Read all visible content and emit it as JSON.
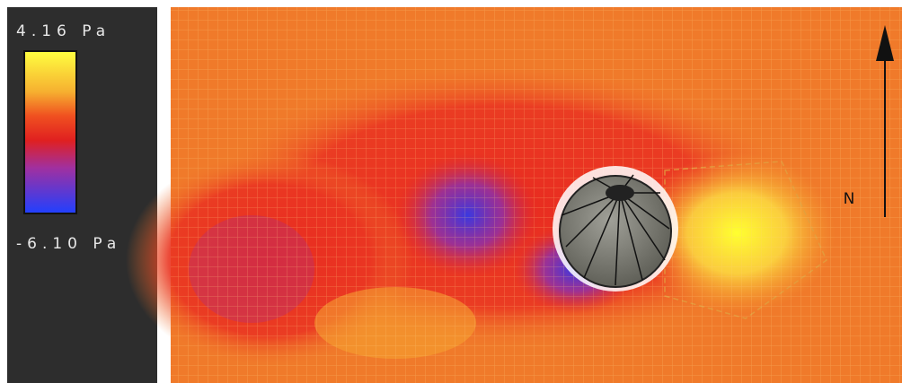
{
  "legend": {
    "max_label": "4.16 Pa",
    "min_label": "-6.10 Pa"
  },
  "compass": {
    "label": "N"
  }
}
